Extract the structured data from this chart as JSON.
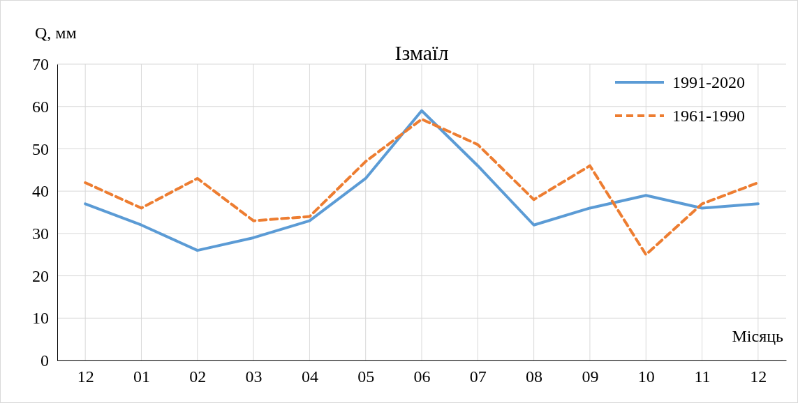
{
  "chart_data": {
    "type": "line",
    "title": "Ізмаїл",
    "xlabel": "Місяць",
    "ylabel": "Q, мм",
    "categories": [
      "12",
      "01",
      "02",
      "03",
      "04",
      "05",
      "06",
      "07",
      "08",
      "09",
      "10",
      "11",
      "12"
    ],
    "series": [
      {
        "name": "1991-2020",
        "color": "#5b9bd5",
        "line_style": "solid",
        "values": [
          37,
          32,
          26,
          29,
          33,
          43,
          59,
          46,
          32,
          36,
          39,
          36,
          37
        ]
      },
      {
        "name": "1961-1990",
        "color": "#ed7d31",
        "line_style": "dashed",
        "values": [
          42,
          36,
          43,
          33,
          34,
          47,
          57,
          51,
          38,
          46,
          25,
          37,
          42
        ]
      }
    ],
    "ylim": [
      0,
      70
    ],
    "yticks": [
      0,
      10,
      20,
      30,
      40,
      50,
      60,
      70
    ],
    "grid": true,
    "legend": "top right",
    "marker": "none"
  }
}
